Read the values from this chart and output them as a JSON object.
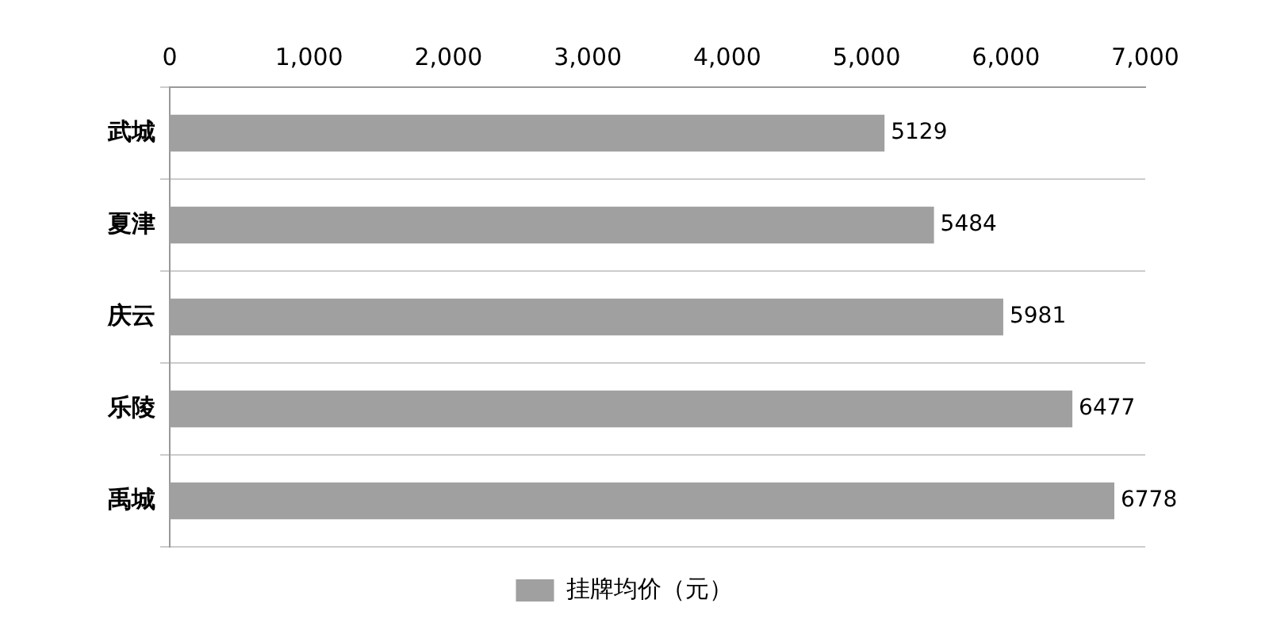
{
  "chart_data": {
    "type": "bar",
    "orientation": "horizontal",
    "categories": [
      "武城",
      "夏津",
      "庆云",
      "乐陵",
      "禹城"
    ],
    "series": [
      {
        "name": "挂牌均价（元）",
        "color": "#a0a0a0",
        "values": [
          5129,
          5484,
          5981,
          6477,
          6778
        ]
      }
    ],
    "xlim": [
      0,
      7000
    ],
    "xticks": [
      0,
      {
        "value": 1000,
        "label": "1,000"
      },
      {
        "value": 2000,
        "label": "2,000"
      },
      {
        "value": 3000,
        "label": "3,000"
      },
      {
        "value": 4000,
        "label": "4,000"
      },
      {
        "value": 5000,
        "label": "5,000"
      },
      {
        "value": 6000,
        "label": "6,000"
      },
      {
        "value": 7000,
        "label": "7,000"
      }
    ],
    "grid": "y",
    "legend": "bottom",
    "data_labels": true
  }
}
